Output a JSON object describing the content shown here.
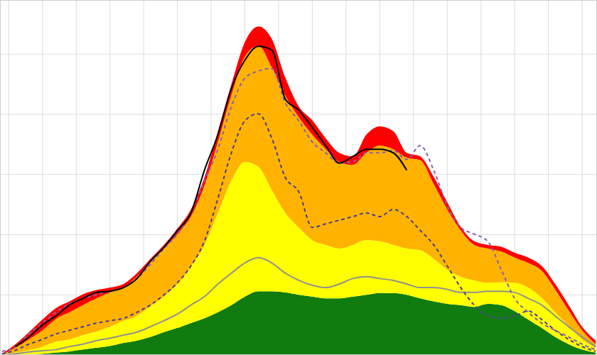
{
  "chart_data": {
    "type": "area",
    "stacked": true,
    "grid": true,
    "tick_labels": false,
    "xlim": [
      -1.3,
      87.2
    ],
    "xticks": [
      0,
      5,
      10,
      15,
      20,
      25,
      30,
      35,
      40,
      45,
      50,
      55,
      60,
      65,
      70,
      75,
      80,
      85
    ],
    "ylim": [
      0,
      590
    ],
    "yticks": [
      0,
      100,
      200,
      300,
      400,
      500
    ],
    "x": [
      -1,
      1,
      3,
      5,
      7,
      9,
      11,
      13,
      15,
      17,
      19,
      21,
      23,
      25,
      27,
      29,
      31,
      33,
      35,
      37,
      39,
      41,
      43,
      45,
      47,
      49,
      51,
      53,
      55,
      57,
      59,
      61,
      63,
      65,
      67,
      69,
      71,
      73,
      75,
      77,
      79,
      81,
      83,
      85,
      87
    ],
    "series": [
      {
        "type": "area",
        "color": "#107c10",
        "values": [
          0,
          0,
          1,
          2,
          4,
          6,
          9,
          12,
          15,
          20,
          24,
          30,
          38,
          45,
          53,
          61,
          71,
          83,
          97,
          106,
          106,
          104,
          100,
          97,
          94,
          94,
          97,
          100,
          103,
          103,
          100,
          94,
          89,
          85,
          83,
          80,
          85,
          83,
          73,
          59,
          45,
          30,
          18,
          9,
          4
        ]
      },
      {
        "type": "area",
        "color": "#ffff00",
        "values": [
          0,
          4,
          7,
          12,
          18,
          20,
          24,
          27,
          32,
          37,
          41,
          51,
          59,
          73,
          94,
          122,
          165,
          207,
          224,
          207,
          168,
          132,
          112,
          94,
          89,
          83,
          86,
          91,
          86,
          80,
          77,
          80,
          71,
          57,
          47,
          44,
          35,
          38,
          47,
          53,
          50,
          41,
          30,
          17,
          8
        ]
      },
      {
        "type": "area",
        "color": "#ffb300",
        "values": [
          1,
          8,
          18,
          27,
          38,
          45,
          50,
          55,
          57,
          55,
          65,
          73,
          80,
          83,
          83,
          98,
          118,
          142,
          175,
          201,
          204,
          195,
          183,
          175,
          159,
          144,
          133,
          145,
          159,
          159,
          151,
          150,
          124,
          100,
          77,
          59,
          57,
          51,
          42,
          41,
          45,
          38,
          26,
          15,
          6
        ]
      },
      {
        "type": "area",
        "color": "#ff0000",
        "values": [
          1,
          6,
          12,
          18,
          18,
          18,
          18,
          14,
          8,
          6,
          6,
          6,
          6,
          9,
          12,
          14,
          18,
          18,
          24,
          32,
          47,
          30,
          18,
          24,
          18,
          15,
          14,
          30,
          32,
          30,
          8,
          6,
          12,
          12,
          6,
          6,
          6,
          8,
          8,
          9,
          8,
          9,
          9,
          6,
          6
        ]
      },
      {
        "type": "line",
        "color": "#909090",
        "line_style": "solid",
        "values": [
          0,
          2,
          5,
          7,
          9,
          14,
          18,
          24,
          28,
          33,
          38,
          47,
          57,
          68,
          83,
          97,
          118,
          136,
          153,
          162,
          153,
          136,
          124,
          116,
          112,
          118,
          127,
          130,
          127,
          124,
          118,
          112,
          112,
          109,
          104,
          104,
          106,
          106,
          104,
          94,
          83,
          65,
          47,
          30,
          14
        ]
      },
      {
        "type": "line",
        "color": "#4a3f8f",
        "line_style": "dashed",
        "values": [
          2,
          8,
          18,
          26,
          35,
          41,
          47,
          53,
          57,
          61,
          71,
          83,
          100,
          120,
          148,
          189,
          260,
          336,
          389,
          401,
          360,
          295,
          271,
          212,
          218,
          224,
          230,
          236,
          230,
          242,
          230,
          207,
          183,
          148,
          112,
          83,
          65,
          61,
          65,
          73,
          59,
          41,
          26,
          14,
          6
        ]
      },
      {
        "type": "line",
        "color": "#8a5fb0",
        "line_style": "dashed",
        "values": [
          6,
          14,
          35,
          53,
          71,
          85,
          94,
          100,
          106,
          112,
          127,
          151,
          177,
          201,
          236,
          289,
          342,
          413,
          460,
          472,
          476,
          419,
          389,
          354,
          336,
          319,
          321,
          336,
          336,
          340,
          325,
          348,
          307,
          248,
          212,
          201,
          189,
          142,
          94,
          71,
          53,
          41,
          30,
          18,
          9
        ]
      },
      {
        "type": "line",
        "color": "#000000",
        "line_style": "solid",
        "values": [
          null,
          14,
          30,
          50,
          65,
          83,
          94,
          104,
          106,
          112,
          127,
          156,
          179,
          207,
          236,
          307,
          366,
          443,
          490,
          513,
          507,
          425,
          407,
          378,
          348,
          319,
          330,
          342,
          342,
          336,
          307,
          null,
          null,
          null,
          null,
          null,
          null,
          null,
          null,
          null,
          null,
          null,
          null,
          null,
          null
        ]
      }
    ]
  }
}
